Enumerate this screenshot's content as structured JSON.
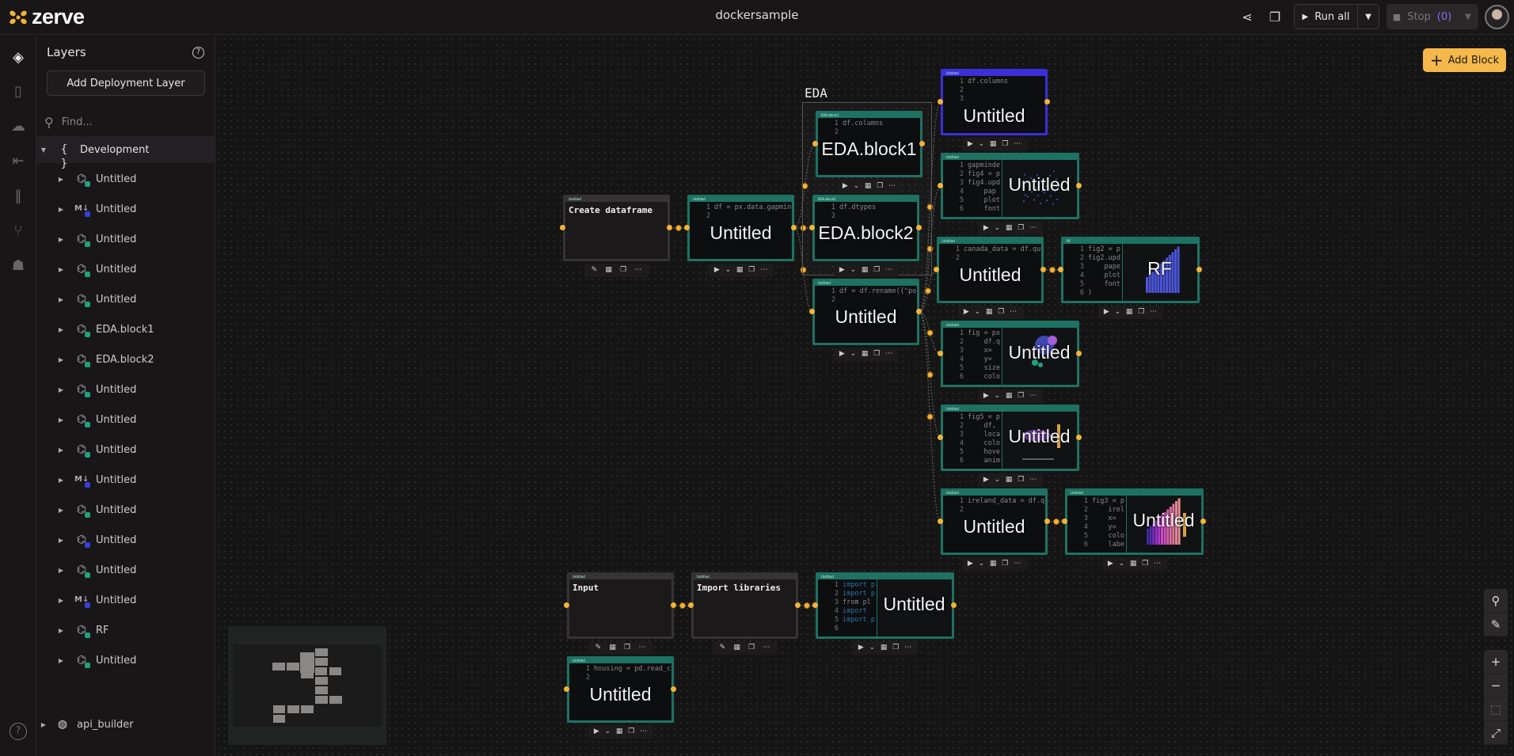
{
  "app": {
    "brand": "zerve",
    "project_title": "dockersample"
  },
  "header": {
    "share_icon": "share-icon",
    "comments_icon": "comments-icon",
    "run_all_label": "Run all",
    "stop_label": "Stop",
    "stop_count": "(0)",
    "stop_count_color": "#8a6cf0"
  },
  "rail": {
    "items": [
      "layers-icon",
      "file-icon",
      "docker-icon",
      "export-icon",
      "library-icon",
      "git-branch-icon",
      "robot-icon",
      "help-icon"
    ]
  },
  "layers": {
    "title": "Layers",
    "add_deployment_label": "Add Deployment Layer",
    "find_placeholder": "Find...",
    "development_label": "Development",
    "items": [
      {
        "label": "Untitled",
        "type": "python",
        "status": "#1fa27c"
      },
      {
        "label": "Untitled",
        "type": "markdown",
        "status": "#3b3fd8"
      },
      {
        "label": "Untitled",
        "type": "python",
        "status": "#1fa27c"
      },
      {
        "label": "Untitled",
        "type": "python",
        "status": "#1fa27c"
      },
      {
        "label": "Untitled",
        "type": "python",
        "status": "#1fa27c"
      },
      {
        "label": "EDA.block1",
        "type": "python",
        "status": "#1fa27c"
      },
      {
        "label": "EDA.block2",
        "type": "python",
        "status": "#1fa27c"
      },
      {
        "label": "Untitled",
        "type": "python",
        "status": "#1fa27c"
      },
      {
        "label": "Untitled",
        "type": "python",
        "status": "#1fa27c"
      },
      {
        "label": "Untitled",
        "type": "python",
        "status": "#1fa27c"
      },
      {
        "label": "Untitled",
        "type": "markdown",
        "status": "#3b3fd8"
      },
      {
        "label": "Untitled",
        "type": "python",
        "status": "#1fa27c"
      },
      {
        "label": "Untitled",
        "type": "python",
        "status": "#3b3fd8"
      },
      {
        "label": "Untitled",
        "type": "python",
        "status": "#1fa27c"
      },
      {
        "label": "Untitled",
        "type": "markdown",
        "status": "#3b3fd8"
      },
      {
        "label": "RF",
        "type": "python",
        "status": "#1fa27c"
      },
      {
        "label": "Untitled",
        "type": "python",
        "status": "#1fa27c"
      }
    ],
    "api_builder_label": "api_builder"
  },
  "canvas": {
    "add_block_label": "Add Block",
    "group_label": "EDA",
    "colors": {
      "code_border": "#1e7262",
      "selected_border": "#3a2fd8",
      "port": "#f5b335",
      "accent": "#f5b84a"
    },
    "blocks": [
      {
        "header": "Untitled",
        "kind": "markdown",
        "text": "Create dataframe"
      },
      {
        "header": "Untitled",
        "kind": "code",
        "name": "Untitled",
        "code": [
          "df = px.data.gapminde",
          ""
        ]
      },
      {
        "header": "EDA.block1",
        "kind": "code",
        "name": "EDA.block1",
        "code": [
          "df.columns",
          ""
        ]
      },
      {
        "header": "EDA.block2",
        "kind": "code",
        "name": "EDA.block2",
        "code": [
          "df.dtypes",
          ""
        ]
      },
      {
        "header": "Untitled",
        "kind": "code",
        "name": "Untitled",
        "code": [
          "df = df.rename({\"pop\"",
          ""
        ]
      },
      {
        "header": "Untitled",
        "kind": "code",
        "name": "Untitled",
        "code": [
          "df.columns",
          "",
          ""
        ],
        "selected": true
      },
      {
        "header": "Untitled",
        "kind": "code",
        "name": "Untitled",
        "code": [
          "gapminde",
          "fig4 = p",
          "fig4.upd",
          "    pap",
          "    plot",
          "    font"
        ],
        "preview": "scatter"
      },
      {
        "header": "Untitled",
        "kind": "code",
        "name": "Untitled",
        "code": [
          "canada_data = df.quer",
          ""
        ]
      },
      {
        "header": "RF",
        "kind": "code",
        "name": "RF",
        "code": [
          "fig2 = p",
          "fig2.upd",
          "    pape",
          "    plot",
          "    font",
          ")"
        ],
        "preview": "bar"
      },
      {
        "header": "Untitled",
        "kind": "code",
        "name": "Untitled",
        "code": [
          "fig = px",
          "    df.q",
          "    x=",
          "    y=",
          "    size",
          "    colo"
        ],
        "preview": "bubble"
      },
      {
        "header": "Untitled",
        "kind": "code",
        "name": "Untitled",
        "code": [
          "fig5 = p",
          "    df,",
          "    loca",
          "    colo",
          "    hove",
          "    anim"
        ],
        "preview": "map"
      },
      {
        "header": "Untitled",
        "kind": "code",
        "name": "Untitled",
        "code": [
          "ireland_data = df.que",
          ""
        ]
      },
      {
        "header": "Untitled",
        "kind": "code",
        "name": "Untitled",
        "code": [
          "fig3 = p",
          "    irel",
          "    x=",
          "    y=",
          "    colo",
          "    labe"
        ],
        "preview": "gradient-bar"
      },
      {
        "header": "Untitled",
        "kind": "markdown",
        "text": "Input"
      },
      {
        "header": "Untitled",
        "kind": "markdown",
        "text": "Import libraries"
      },
      {
        "header": "Untitled",
        "kind": "code",
        "name": "Untitled",
        "code": [
          "import p",
          "import p",
          "from pl",
          "import",
          "import p",
          ""
        ],
        "keywords": true,
        "preview": "blank"
      },
      {
        "header": "Untitled",
        "kind": "code",
        "name": "Untitled",
        "code": [
          "housing = pd.read_csv",
          ""
        ]
      }
    ],
    "controls": [
      "search-icon",
      "brush-icon",
      "zoom-in-icon",
      "zoom-out-icon",
      "zoom-to-selection-icon",
      "fit-view-icon"
    ]
  }
}
